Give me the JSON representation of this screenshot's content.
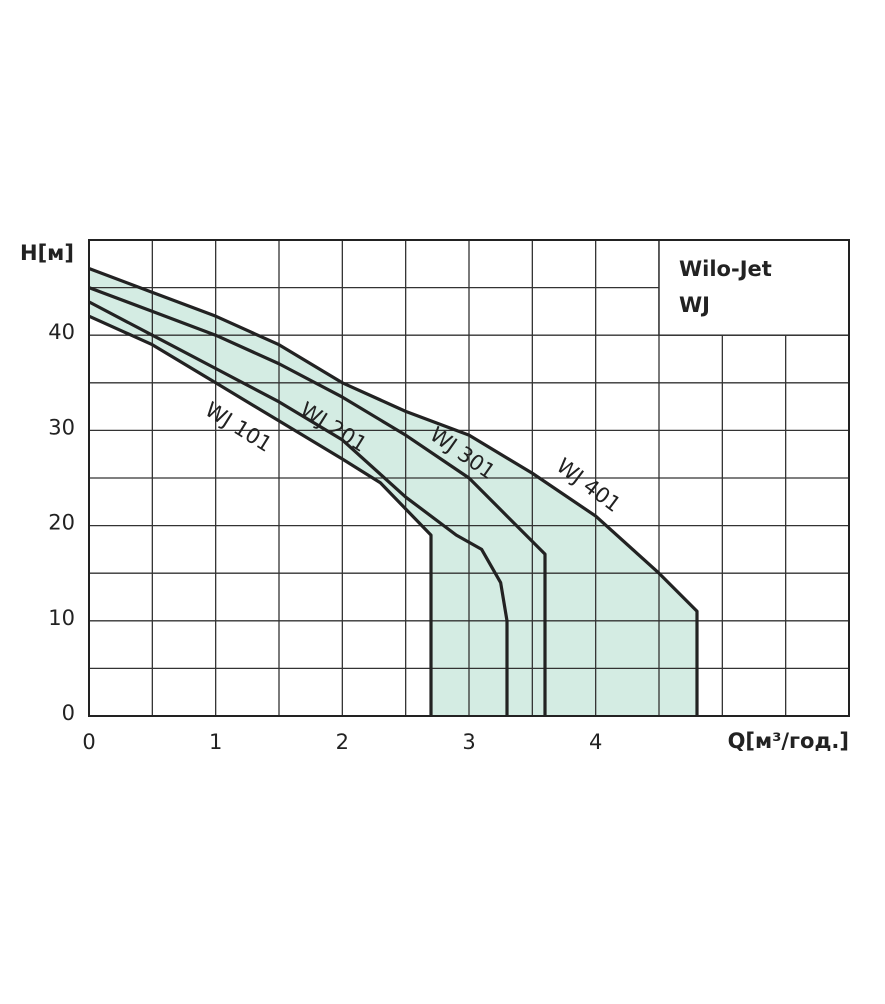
{
  "chart_data": {
    "type": "line",
    "y_label": "H[м]",
    "x_label": "Q[м³/год.]",
    "box_title": [
      "Wilo-Jet",
      "WJ"
    ],
    "xlim": [
      0,
      6
    ],
    "ylim": [
      0,
      50
    ],
    "xticks": [
      0,
      1,
      2,
      3,
      4
    ],
    "yticks": [
      0,
      10,
      20,
      30,
      40
    ],
    "grid": true,
    "fill_color": "#d4ece3",
    "series": [
      {
        "name": "WJ 101",
        "color": "#222222",
        "x": [
          0,
          0.5,
          1,
          1.5,
          2,
          2.3,
          2.7,
          2.7
        ],
        "values": [
          42,
          39,
          35,
          31,
          27,
          24.5,
          19,
          0
        ]
      },
      {
        "name": "WJ 201",
        "color": "#222222",
        "x": [
          0,
          0.5,
          1,
          1.5,
          2,
          2.5,
          2.9,
          3.1,
          3.25,
          3.3,
          3.3
        ],
        "values": [
          43.5,
          40,
          36.5,
          33,
          29,
          23,
          19,
          17.5,
          14,
          10,
          0
        ]
      },
      {
        "name": "WJ 301",
        "color": "#222222",
        "x": [
          0,
          0.5,
          1,
          1.5,
          2,
          2.5,
          3,
          3.3,
          3.6,
          3.6
        ],
        "values": [
          45,
          42.5,
          40,
          37,
          33.5,
          29.5,
          25,
          21,
          17,
          0
        ]
      },
      {
        "name": "WJ 401",
        "color": "#222222",
        "x": [
          0,
          0.5,
          1,
          1.5,
          2,
          2.5,
          3,
          3.5,
          4,
          4.5,
          4.8,
          4.8
        ],
        "values": [
          47,
          44.5,
          42,
          39,
          35,
          32,
          29.5,
          25.5,
          21,
          15,
          11,
          0
        ]
      }
    ]
  }
}
